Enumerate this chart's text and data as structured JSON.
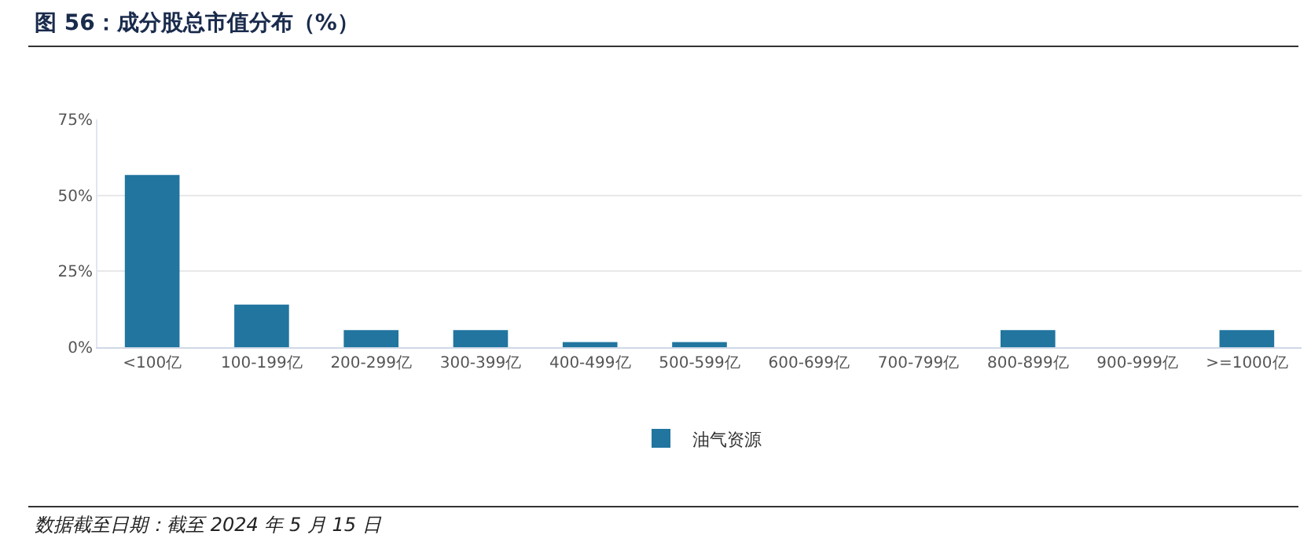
{
  "chart_data": {
    "type": "bar",
    "title": "图 56：成分股总市值分布（%）",
    "categories": [
      "<100亿",
      "100-199亿",
      "200-299亿",
      "300-399亿",
      "400-499亿",
      "500-599亿",
      "600-699亿",
      "700-799亿",
      "800-899亿",
      "900-999亿",
      ">=1000亿"
    ],
    "series": [
      {
        "name": "油气资源",
        "color": "#21759f",
        "values": [
          56.7,
          14,
          5.6,
          5.6,
          1.7,
          1.7,
          0,
          0,
          5.6,
          0,
          5.6
        ]
      }
    ],
    "ylim": [
      0,
      75
    ],
    "yticks": [
      {
        "value": 0,
        "label": "0%"
      },
      {
        "value": 25,
        "label": "25%"
      },
      {
        "value": 50,
        "label": "50%"
      },
      {
        "value": 75,
        "label": "75%"
      }
    ],
    "grid": "y",
    "legend": "bottom",
    "annotations": [
      "数据截至日期：截至 2024 年 5 月 15 日"
    ]
  }
}
